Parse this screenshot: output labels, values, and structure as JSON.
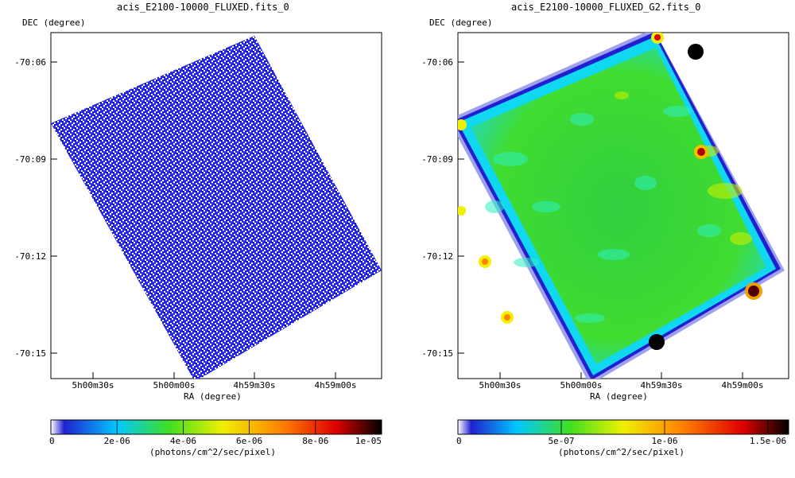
{
  "panels": [
    {
      "title": "acis_E2100-10000_FLUXED.fits_0",
      "ylabel": "DEC (degree)",
      "xlabel": "RA (degree)",
      "dec_ticks": [
        "-70:06",
        "-70:09",
        "-70:12",
        "-70:15"
      ],
      "ra_ticks": [
        "5h00m30s",
        "5h00m00s",
        "4h59m30s",
        "4h59m00s"
      ],
      "colorbar_ticks": [
        "0",
        "2e-06",
        "4e-06",
        "6e-06",
        "8e-06",
        "1e-05"
      ],
      "colorbar_units": "(photons/cm^2/sec/pixel)"
    },
    {
      "title": "acis_E2100-10000_FLUXED_G2.fits_0",
      "ylabel": "DEC (degree)",
      "xlabel": "RA (degree)",
      "dec_ticks": [
        "-70:06",
        "-70:09",
        "-70:12",
        "-70:15"
      ],
      "ra_ticks": [
        "5h00m30s",
        "5h00m00s",
        "4h59m30s",
        "4h59m00s"
      ],
      "colorbar_ticks": [
        "0",
        "5e-07",
        "1e-06",
        "1.5e-06"
      ],
      "colorbar_units": "(photons/cm^2/sec/pixel)"
    }
  ],
  "chart_data": [
    {
      "type": "heatmap",
      "title": "acis_E2100-10000_FLUXED.fits_0",
      "xlabel": "RA (degree)",
      "ylabel": "DEC (degree)",
      "x_ticks": [
        "5h00m30s",
        "5h00m00s",
        "4h59m30s",
        "4h59m00s"
      ],
      "y_ticks": [
        "-70:06",
        "-70:09",
        "-70:12",
        "-70:15"
      ],
      "colorbar": {
        "range": [
          0,
          1e-05
        ],
        "ticks": [
          0,
          2e-06,
          4e-06,
          6e-06,
          8e-06,
          1e-05
        ],
        "units": "(photons/cm^2/sec/pixel)"
      },
      "colormap": [
        "#2020d0",
        "#00c8ff",
        "#40e020",
        "#f0f000",
        "#ff8000",
        "#e00000",
        "#000000"
      ]
    },
    {
      "type": "heatmap",
      "title": "acis_E2100-10000_FLUXED_G2.fits_0",
      "xlabel": "RA (degree)",
      "ylabel": "DEC (degree)",
      "x_ticks": [
        "5h00m30s",
        "5h00m00s",
        "4h59m30s",
        "4h59m00s"
      ],
      "y_ticks": [
        "-70:06",
        "-70:09",
        "-70:12",
        "-70:15"
      ],
      "colorbar": {
        "range": [
          0,
          1.6e-06
        ],
        "ticks": [
          0,
          5e-07,
          1e-06,
          1.5e-06
        ],
        "units": "(photons/cm^2/sec/pixel)"
      },
      "colormap": [
        "#2020d0",
        "#00c8ff",
        "#40e020",
        "#f0f000",
        "#ff8000",
        "#e00000",
        "#000000"
      ]
    }
  ]
}
